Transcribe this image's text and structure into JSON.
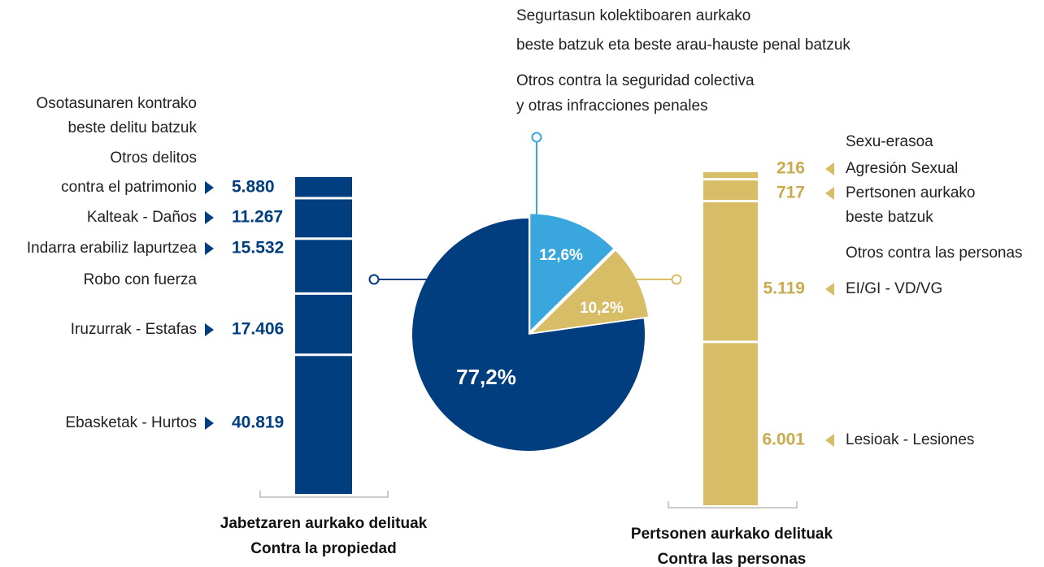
{
  "chart_data": [
    {
      "type": "pie",
      "annotation": [
        "Segurtasun kolektiboaren aurkako",
        "beste batzuk eta beste arau-hauste penal batzuk",
        "Otros contra la seguridad colectiva",
        "y otras infracciones penales"
      ],
      "values": [
        12.6,
        10.2,
        77.2
      ],
      "value_labels": [
        "12,6%",
        "10,2%",
        "77,2%"
      ],
      "colors": [
        "#3aa6de",
        "#d6bd66",
        "#003e80"
      ]
    },
    {
      "type": "stacked-bar",
      "title": [
        "Jabetzaren aurkako delituak",
        "Contra la propiedad"
      ],
      "color": "#003e80",
      "series": [
        {
          "name": [
            "Osotasunaren kontrako",
            "beste delitu batzuk",
            "Otros delitos",
            "contra el patrimonio"
          ],
          "values": [
            5880
          ],
          "value_labels": [
            "5.880"
          ]
        },
        {
          "name": [
            "Kalteak - Daños"
          ],
          "values": [
            11267
          ],
          "value_labels": [
            "11.267"
          ]
        },
        {
          "name": [
            "Indarra erabiliz lapurtzea",
            "Robo con fuerza"
          ],
          "values": [
            15532
          ],
          "value_labels": [
            "15.532"
          ]
        },
        {
          "name": [
            "Iruzurrak - Estafas"
          ],
          "values": [
            17406
          ],
          "value_labels": [
            "17.406"
          ]
        },
        {
          "name": [
            "Ebasketak - Hurtos"
          ],
          "values": [
            40819
          ],
          "value_labels": [
            "40.819"
          ]
        }
      ]
    },
    {
      "type": "stacked-bar",
      "title": [
        "Pertsonen aurkako delituak",
        "Contra las personas"
      ],
      "color": "#d6bd66",
      "series": [
        {
          "name": [
            "Sexu-erasoa",
            "Agresión Sexual"
          ],
          "values": [
            216
          ],
          "value_labels": [
            "216"
          ]
        },
        {
          "name": [
            "Pertsonen aurkako",
            "beste batzuk",
            "Otros contra las personas"
          ],
          "values": [
            717
          ],
          "value_labels": [
            "717"
          ]
        },
        {
          "name": [
            "EI/GI - VD/VG"
          ],
          "values": [
            5119
          ],
          "value_labels": [
            "5.119"
          ]
        },
        {
          "name": [
            "Lesioak - Lesiones"
          ],
          "values": [
            6001
          ],
          "value_labels": [
            "6.001"
          ]
        }
      ]
    }
  ]
}
